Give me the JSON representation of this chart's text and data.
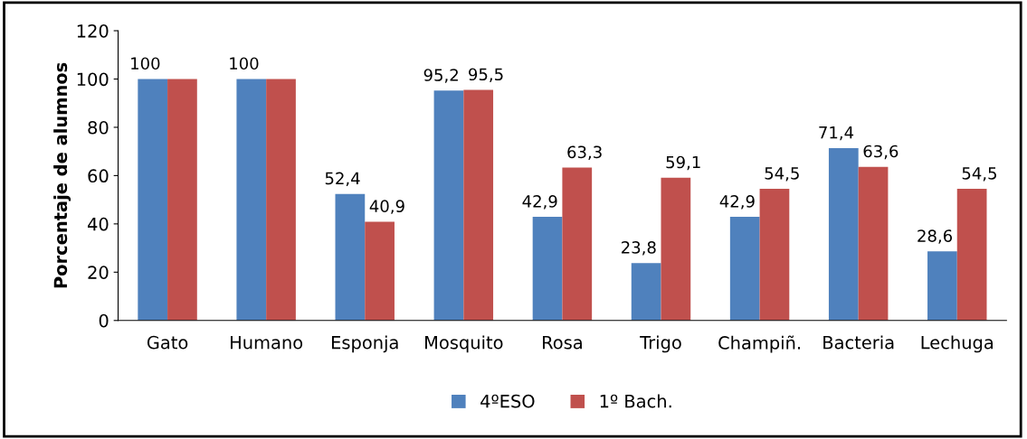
{
  "chart_data": {
    "type": "bar",
    "ylabel": "Porcentaje de alumnos",
    "categories": [
      "Gato",
      "Humano",
      "Esponja",
      "Mosquito",
      "Rosa",
      "Trigo",
      "Champiñ.",
      "Bacteria",
      "Lechuga"
    ],
    "series": [
      {
        "name": "4ºESO",
        "color": "#4f81bd",
        "values": [
          100,
          100,
          52.4,
          95.2,
          42.9,
          23.8,
          42.9,
          71.4,
          28.6
        ],
        "value_labels": [
          "100",
          "100",
          "52,4",
          "95,2",
          "42,9",
          "23,8",
          "42,9",
          "71,4",
          "28,6"
        ]
      },
      {
        "name": "1º Bach.",
        "color": "#c0504d",
        "values": [
          100,
          100,
          40.9,
          95.5,
          63.3,
          59.1,
          54.5,
          63.6,
          54.5
        ],
        "value_labels": [
          null,
          null,
          "40,9",
          "95,5",
          "63,3",
          "59,1",
          "54,5",
          "63,6",
          "54,5"
        ]
      }
    ],
    "ylim": [
      0,
      120
    ],
    "yticks": [
      0,
      20,
      40,
      60,
      80,
      100,
      120
    ],
    "grid": false,
    "legend": "bottom"
  }
}
